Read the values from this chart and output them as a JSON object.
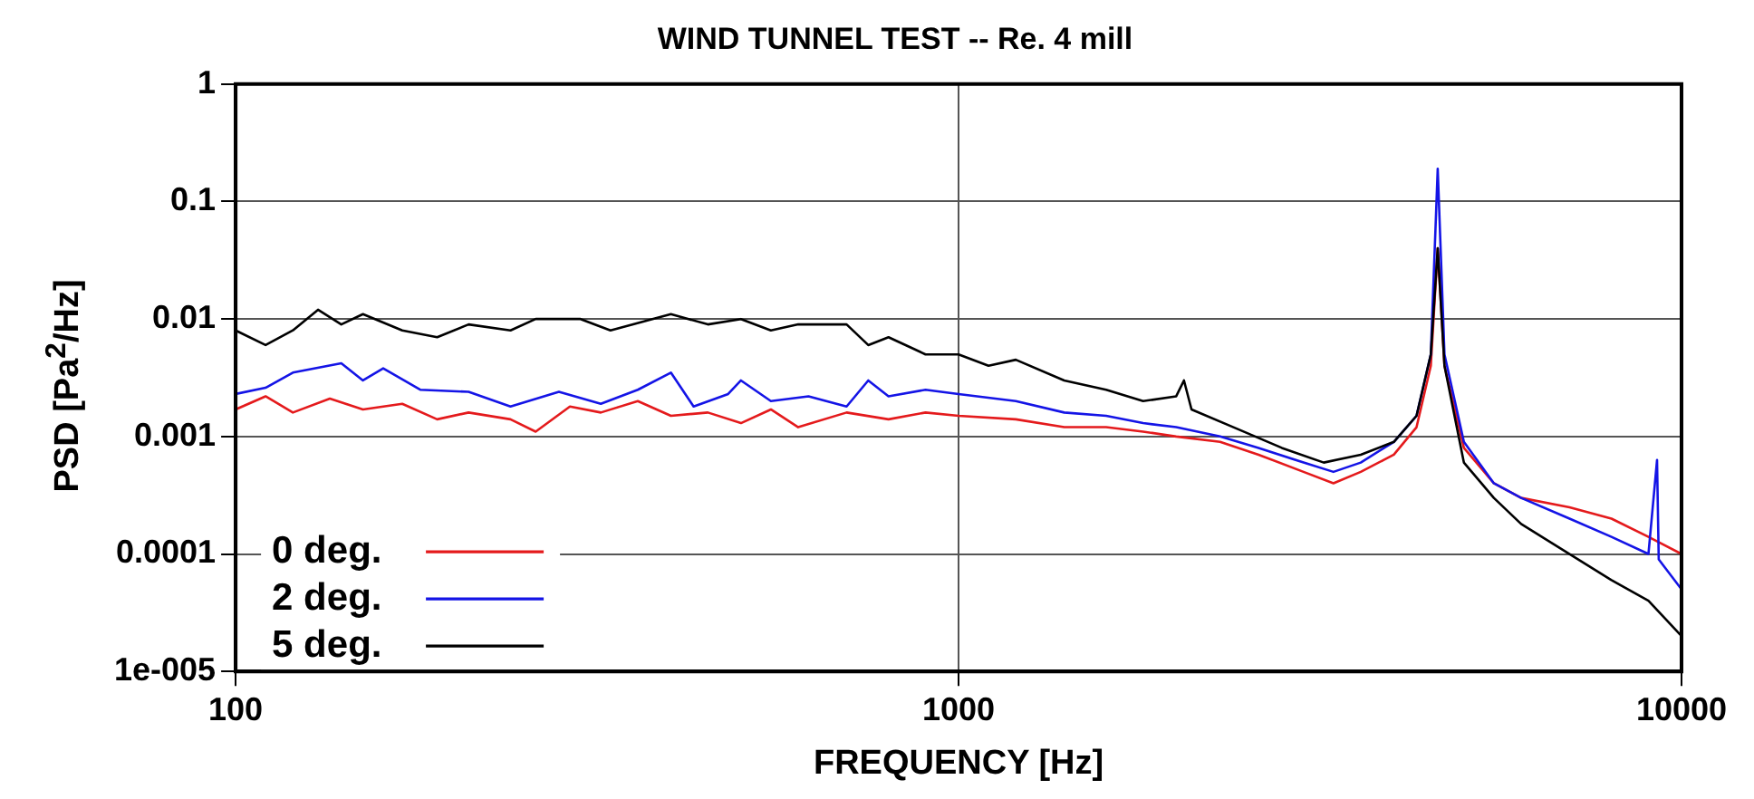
{
  "chart_data": {
    "type": "line",
    "title": "WIND TUNNEL TEST -- Re. 4 mill",
    "xlabel": "FREQUENCY [Hz]",
    "ylabel": "PSD [Pa$^{2}$/Hz]",
    "log": "xy",
    "xlim": [
      100,
      10000
    ],
    "xticks": [
      100,
      1000,
      10000
    ],
    "ylim": [
      1e-05,
      1
    ],
    "yticks": [
      1,
      0.1,
      0.01,
      0.001,
      0.0001,
      {
        "value": 1e-05,
        "label": "1e-005"
      }
    ],
    "grid": true,
    "legend": "bottom left",
    "marker": "none",
    "line_style": "solid",
    "series": [
      {
        "name": "0 deg.",
        "color": "#e41a1c",
        "x": [
          100,
          110,
          120,
          135,
          150,
          170,
          190,
          210,
          240,
          260,
          290,
          320,
          360,
          400,
          450,
          500,
          550,
          600,
          700,
          800,
          900,
          1000,
          1200,
          1400,
          1600,
          1800,
          2000,
          2300,
          2600,
          3000,
          3300,
          3600,
          4000,
          4300,
          4500,
          4600,
          4700,
          5000,
          5500,
          6000,
          7000,
          8000,
          9000,
          10000
        ],
        "values": [
          0.0017,
          0.0022,
          0.0016,
          0.0021,
          0.0017,
          0.0019,
          0.0014,
          0.0016,
          0.0014,
          0.0011,
          0.0018,
          0.0016,
          0.002,
          0.0015,
          0.0016,
          0.0013,
          0.0017,
          0.0012,
          0.0016,
          0.0014,
          0.0016,
          0.0015,
          0.0014,
          0.0012,
          0.0012,
          0.0011,
          0.001,
          0.0009,
          0.0007,
          0.0005,
          0.0004,
          0.0005,
          0.0007,
          0.0012,
          0.004,
          0.04,
          0.004,
          0.0008,
          0.0004,
          0.0003,
          0.00025,
          0.0002,
          0.00014,
          0.0001
        ]
      },
      {
        "name": "2 deg.",
        "color": "#1414e6",
        "x": [
          100,
          110,
          120,
          140,
          150,
          160,
          180,
          210,
          240,
          280,
          320,
          360,
          400,
          430,
          480,
          500,
          550,
          620,
          700,
          750,
          800,
          900,
          1000,
          1200,
          1400,
          1600,
          1800,
          2000,
          2300,
          2600,
          3000,
          3300,
          3600,
          4000,
          4300,
          4500,
          4600,
          4700,
          5000,
          5500,
          6000,
          7000,
          8000,
          9000,
          9250,
          9300,
          10000
        ],
        "values": [
          0.0023,
          0.0026,
          0.0035,
          0.0042,
          0.003,
          0.0038,
          0.0025,
          0.0024,
          0.0018,
          0.0024,
          0.0019,
          0.0025,
          0.0035,
          0.0018,
          0.0023,
          0.003,
          0.002,
          0.0022,
          0.0018,
          0.003,
          0.0022,
          0.0025,
          0.0023,
          0.002,
          0.0016,
          0.0015,
          0.0013,
          0.0012,
          0.001,
          0.0008,
          0.0006,
          0.0005,
          0.0006,
          0.0009,
          0.0015,
          0.005,
          0.19,
          0.005,
          0.0009,
          0.0004,
          0.0003,
          0.0002,
          0.00014,
          0.0001,
          0.00063,
          9e-05,
          5e-05
        ]
      },
      {
        "name": "5 deg.",
        "color": "#000000",
        "x": [
          100,
          110,
          120,
          130,
          140,
          150,
          170,
          190,
          210,
          240,
          260,
          300,
          330,
          400,
          450,
          500,
          550,
          600,
          700,
          750,
          800,
          900,
          1000,
          1100,
          1200,
          1400,
          1600,
          1800,
          2000,
          2050,
          2100,
          2400,
          2800,
          3200,
          3600,
          4000,
          4300,
          4500,
          4600,
          4700,
          5000,
          5500,
          6000,
          7000,
          8000,
          9000,
          10000
        ],
        "values": [
          0.008,
          0.006,
          0.008,
          0.012,
          0.009,
          0.011,
          0.008,
          0.007,
          0.009,
          0.008,
          0.01,
          0.01,
          0.008,
          0.011,
          0.009,
          0.01,
          0.008,
          0.009,
          0.009,
          0.006,
          0.007,
          0.005,
          0.005,
          0.004,
          0.0045,
          0.003,
          0.0025,
          0.002,
          0.0022,
          0.003,
          0.0017,
          0.0012,
          0.0008,
          0.0006,
          0.0007,
          0.0009,
          0.0015,
          0.005,
          0.04,
          0.004,
          0.0006,
          0.0003,
          0.00018,
          0.0001,
          6e-05,
          4e-05,
          2e-05
        ]
      }
    ]
  }
}
